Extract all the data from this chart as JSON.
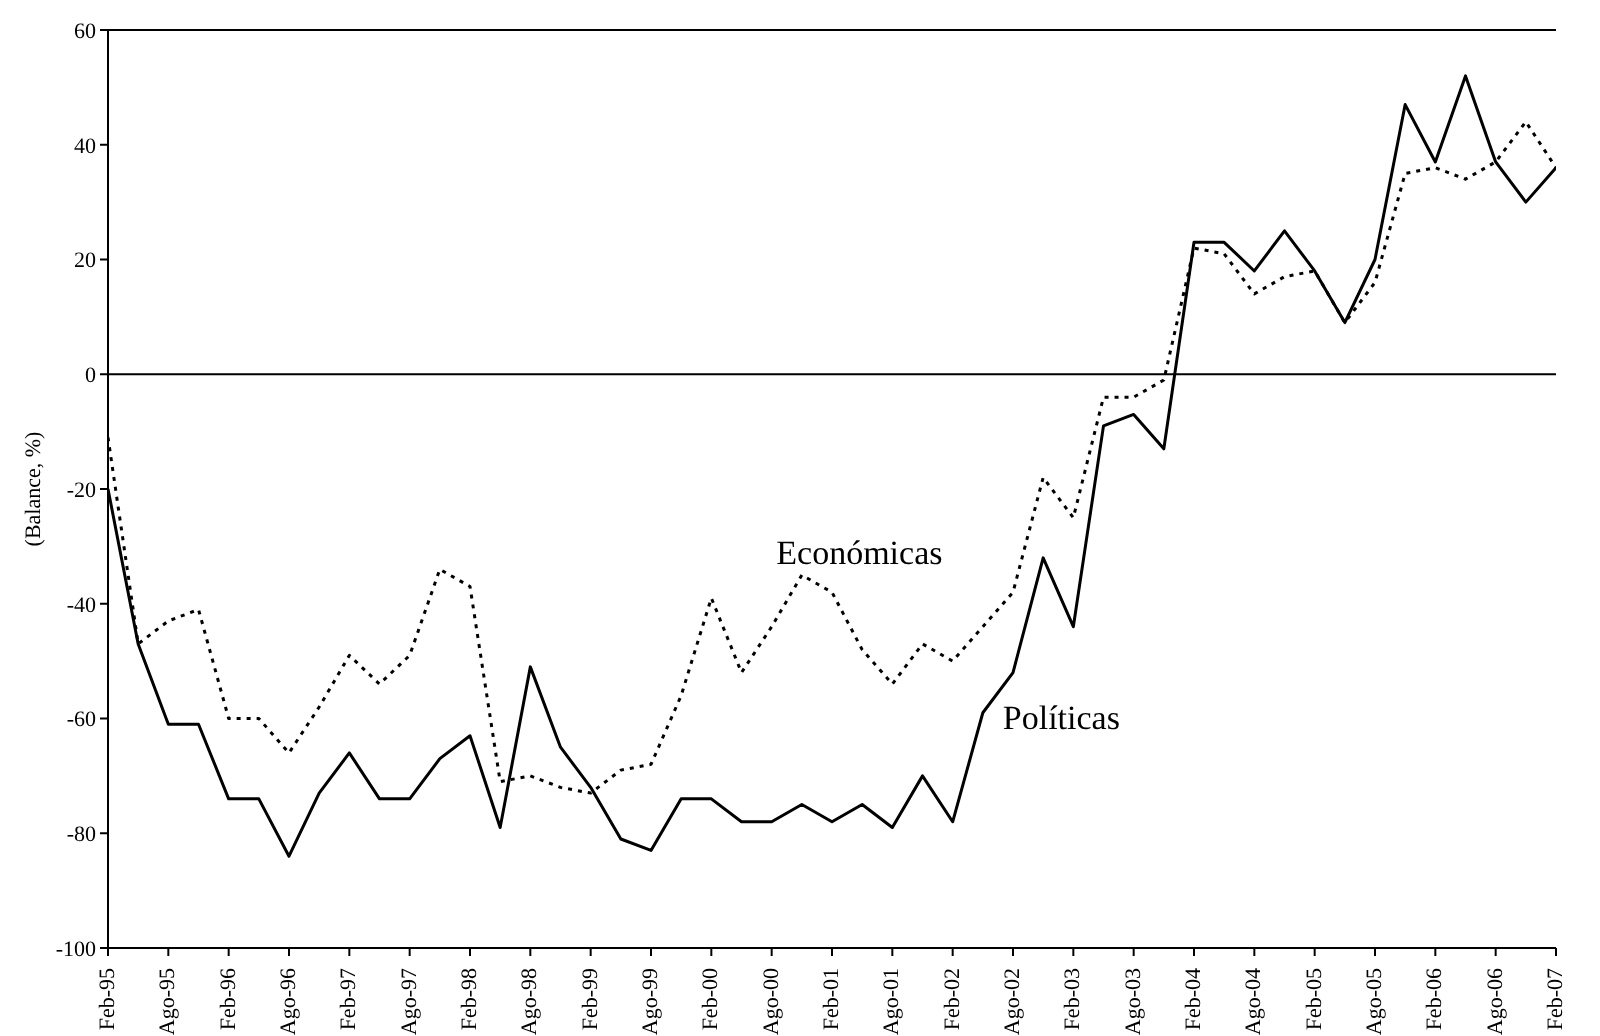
{
  "chart_data": {
    "type": "line",
    "ylabel": "(Balance, %)",
    "categories": [
      "Feb-95",
      null,
      "Ago-95",
      null,
      "Feb-96",
      null,
      "Ago-96",
      null,
      "Feb-97",
      null,
      "Ago-97",
      null,
      "Feb-98",
      null,
      "Ago-98",
      null,
      "Feb-99",
      null,
      "Ago-99",
      null,
      "Feb-00",
      null,
      "Ago-00",
      null,
      "Feb-01",
      null,
      "Ago-01",
      null,
      "Feb-02",
      null,
      "Ago-02",
      null,
      "Feb-03",
      null,
      "Ago-03",
      null,
      "Feb-04",
      null,
      "Ago-04",
      null,
      "Feb-05",
      null,
      "Ago-05",
      null,
      "Feb-06",
      null,
      "Ago-06",
      null,
      "Feb-07"
    ],
    "series": [
      {
        "name": "Económicas",
        "color": "#000000",
        "line_style": "dotted",
        "values": [
          -11,
          -47,
          -43,
          -41,
          -60,
          -60,
          -66,
          -58,
          -49,
          -54,
          -49,
          -34,
          -37,
          -71,
          -70,
          -72,
          -73,
          -69,
          -68,
          -56,
          -39,
          -52,
          -44,
          -35,
          -38,
          -48,
          -54,
          -47,
          -50,
          -44,
          -38,
          -18,
          -25,
          -4,
          -4,
          -1,
          22,
          21,
          14,
          17,
          18,
          9,
          16,
          35,
          36,
          34,
          37,
          44,
          36
        ]
      },
      {
        "name": "Políticas",
        "color": "#000000",
        "line_style": "solid",
        "values": [
          -20,
          -47,
          -61,
          -61,
          -74,
          -74,
          -84,
          -73,
          -66,
          -74,
          -74,
          -67,
          -63,
          -79,
          -51,
          -65,
          -72,
          -81,
          -83,
          -74,
          -74,
          -78,
          -78,
          -75,
          -78,
          -75,
          -79,
          -70,
          -78,
          -59,
          -52,
          -32,
          -44,
          -9,
          -7,
          -13,
          23,
          23,
          18,
          25,
          18,
          9,
          20,
          47,
          37,
          52,
          37,
          30,
          36
        ]
      }
    ],
    "ylim": [
      -100,
      60
    ],
    "yticks": [
      -100,
      -80,
      -60,
      -40,
      -20,
      0,
      20,
      40,
      60
    ],
    "ref_lines": [
      {
        "axis": "y",
        "value": 0,
        "color": "#000000"
      }
    ],
    "grid": false,
    "legend": false,
    "marker": "none"
  }
}
